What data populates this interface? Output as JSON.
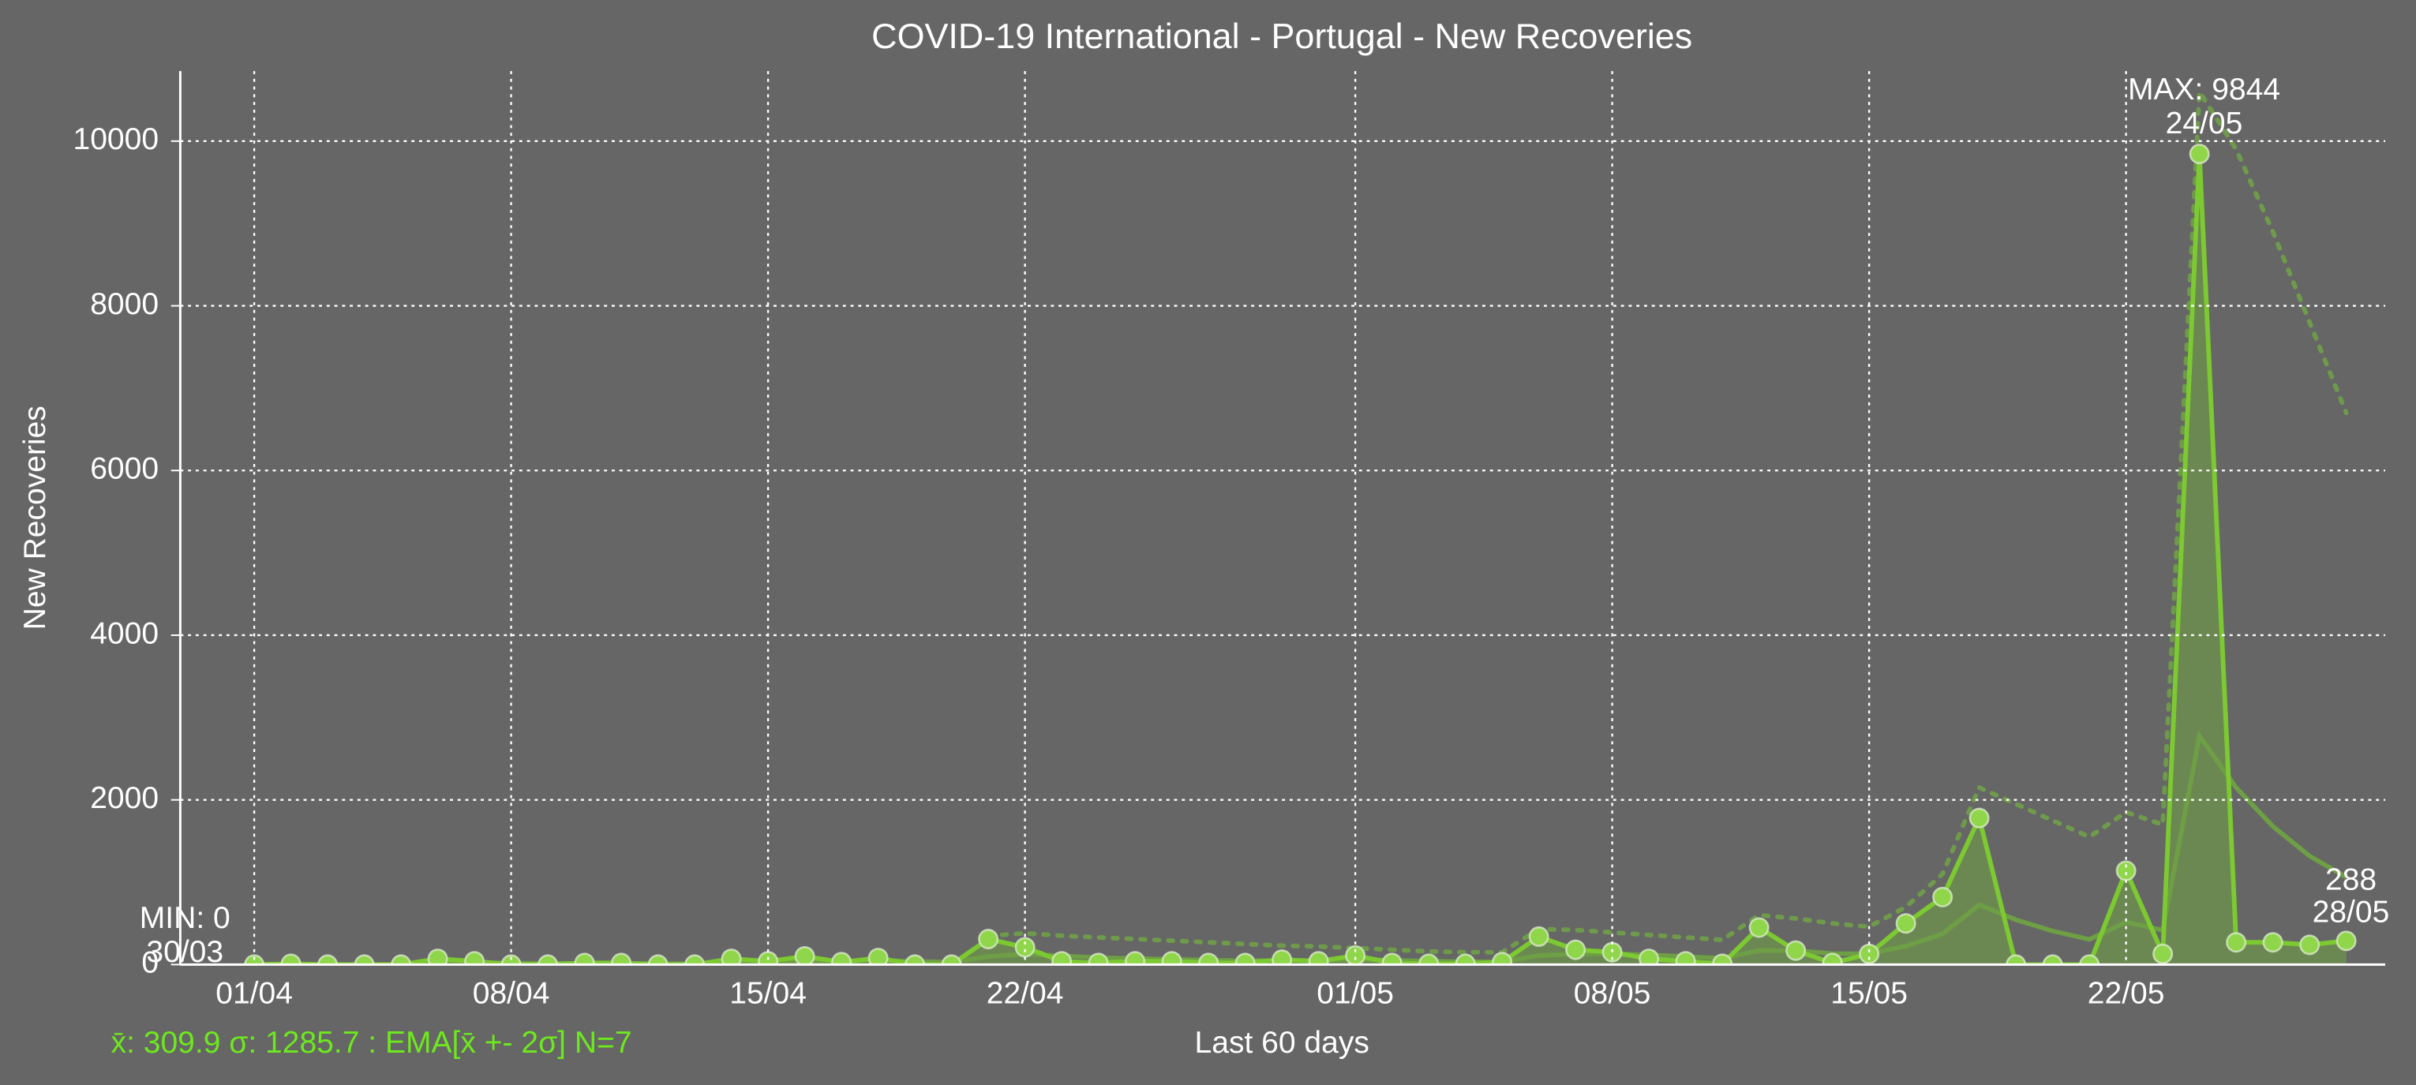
{
  "chart_data": {
    "type": "line",
    "title": "COVID-19 International - Portugal - New Recoveries",
    "xlabel": "Last 60 days",
    "ylabel": "New Recoveries",
    "categories": [
      "01/04",
      null,
      null,
      null,
      null,
      null,
      null,
      "08/04",
      null,
      null,
      null,
      null,
      null,
      null,
      "15/04",
      null,
      null,
      null,
      null,
      null,
      null,
      "22/04",
      null,
      null,
      null,
      null,
      null,
      null,
      null,
      null,
      "01/05",
      null,
      null,
      null,
      null,
      null,
      null,
      "08/05",
      null,
      null,
      null,
      null,
      null,
      null,
      "15/05",
      null,
      null,
      null,
      null,
      null,
      null,
      "22/05",
      null,
      null,
      null,
      null,
      null,
      null
    ],
    "series": [
      {
        "name": "New Recoveries",
        "color": "#7cc932",
        "values": [
          0,
          10,
          0,
          0,
          0,
          70,
          40,
          0,
          0,
          20,
          20,
          0,
          0,
          70,
          40,
          100,
          30,
          80,
          0,
          0,
          310,
          210,
          40,
          20,
          40,
          40,
          20,
          20,
          60,
          40,
          110,
          20,
          10,
          10,
          30,
          340,
          180,
          150,
          70,
          40,
          10,
          450,
          170,
          20,
          130,
          500,
          820,
          1780,
          0,
          0,
          0,
          1140,
          130,
          9844,
          270,
          270,
          240,
          288
        ]
      },
      {
        "name": "EMA",
        "color": "#6e9e45",
        "values": [
          0,
          3,
          2,
          1,
          1,
          18,
          24,
          18,
          14,
          15,
          16,
          12,
          9,
          25,
          29,
          47,
          43,
          52,
          39,
          29,
          99,
          127,
          105,
          84,
          73,
          65,
          54,
          46,
          50,
          47,
          63,
          52,
          42,
          34,
          33,
          110,
          128,
          133,
          117,
          98,
          76,
          170,
          170,
          133,
          132,
          224,
          373,
          725,
          544,
          408,
          306,
          514,
          418,
          2775,
          2149,
          1679,
          1319,
          1061
        ]
      },
      {
        "name": "EMA + 2σ",
        "color": "#6f9a4c",
        "values": [
          null,
          null,
          null,
          null,
          null,
          null,
          null,
          null,
          null,
          null,
          null,
          null,
          null,
          null,
          null,
          null,
          null,
          null,
          null,
          null,
          350,
          380,
          350,
          330,
          310,
          290,
          270,
          250,
          230,
          220,
          200,
          180,
          160,
          150,
          150,
          430,
          420,
          390,
          360,
          330,
          300,
          600,
          560,
          500,
          460,
          700,
          1100,
          2150,
          1950,
          1750,
          1550,
          1850,
          1700,
          10600,
          9900,
          8900,
          7800,
          6700
        ]
      }
    ],
    "ylim": [
      0,
      10850
    ],
    "yticks": [
      0,
      2000,
      4000,
      6000,
      8000,
      10000
    ],
    "grid": true,
    "annotations": [
      "MAX: 9844",
      "24/05",
      "MIN: 0",
      "30/03",
      "288",
      "28/05"
    ],
    "footer": "x̄: 309.9 σ: 1285.7 : EMA[x̄ +- 2σ] N=7"
  }
}
